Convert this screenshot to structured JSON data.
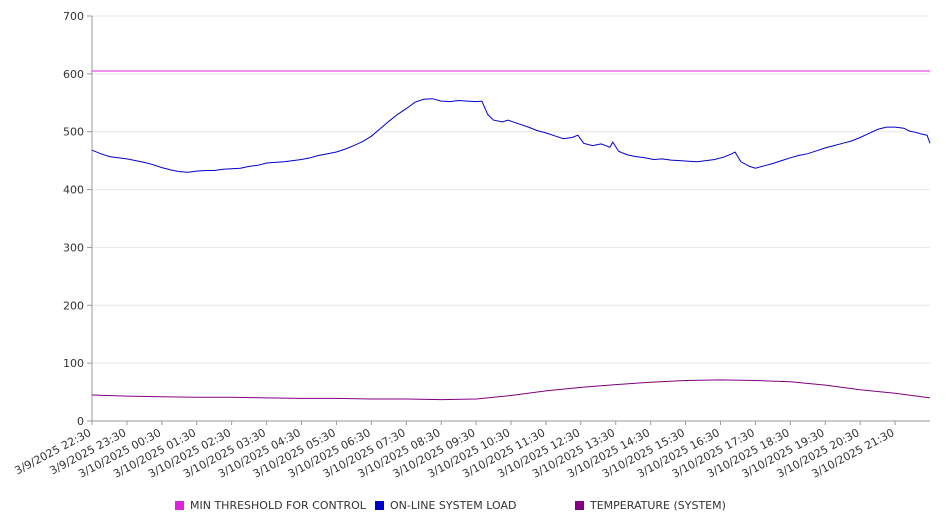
{
  "chart_data": {
    "type": "line",
    "title": "",
    "xlabel": "",
    "ylabel": "",
    "ylim": [
      0,
      700
    ],
    "yticks": [
      0,
      100,
      200,
      300,
      400,
      500,
      600,
      700
    ],
    "grid": "horizontal",
    "legend_position": "bottom",
    "x_start": "3/9/2025 22:30",
    "x_end": "3/10/2025 22:30",
    "xticks": [
      "3/9/2025 22:30",
      "3/9/2025 23:30",
      "3/10/2025 00:30",
      "3/10/2025 01:30",
      "3/10/2025 02:30",
      "3/10/2025 03:30",
      "3/10/2025 04:30",
      "3/10/2025 05:30",
      "3/10/2025 06:30",
      "3/10/2025 07:30",
      "3/10/2025 08:30",
      "3/10/2025 09:30",
      "3/10/2025 10:30",
      "3/10/2025 11:30",
      "3/10/2025 12:30",
      "3/10/2025 13:30",
      "3/10/2025 14:30",
      "3/10/2025 15:30",
      "3/10/2025 16:30",
      "3/10/2025 17:30",
      "3/10/2025 18:30",
      "3/10/2025 19:30",
      "3/10/2025 20:30",
      "3/10/2025 21:30"
    ],
    "series": [
      {
        "name": "MIN THRESHOLD FOR CONTROL",
        "color": "#dd22dd",
        "points": [
          [
            "3/9/2025 22:30",
            605
          ],
          [
            "3/10/2025 22:30",
            605
          ]
        ]
      },
      {
        "name": "ON-LINE SYSTEM LOAD",
        "color": "#0000cc",
        "points": [
          [
            "3/9/2025 22:30",
            468
          ],
          [
            "3/9/2025 22:45",
            462
          ],
          [
            "3/9/2025 23:00",
            457
          ],
          [
            "3/9/2025 23:15",
            455
          ],
          [
            "3/9/2025 23:30",
            453
          ],
          [
            "3/9/2025 23:45",
            450
          ],
          [
            "3/10/2025 00:00",
            447
          ],
          [
            "3/10/2025 00:15",
            443
          ],
          [
            "3/10/2025 00:30",
            438
          ],
          [
            "3/10/2025 00:45",
            434
          ],
          [
            "3/10/2025 01:00",
            431
          ],
          [
            "3/10/2025 01:15",
            430
          ],
          [
            "3/10/2025 01:30",
            432
          ],
          [
            "3/10/2025 01:45",
            433
          ],
          [
            "3/10/2025 02:00",
            433
          ],
          [
            "3/10/2025 02:15",
            435
          ],
          [
            "3/10/2025 02:30",
            436
          ],
          [
            "3/10/2025 02:45",
            437
          ],
          [
            "3/10/2025 03:00",
            440
          ],
          [
            "3/10/2025 03:15",
            442
          ],
          [
            "3/10/2025 03:30",
            446
          ],
          [
            "3/10/2025 03:45",
            447
          ],
          [
            "3/10/2025 04:00",
            448
          ],
          [
            "3/10/2025 04:15",
            450
          ],
          [
            "3/10/2025 04:30",
            452
          ],
          [
            "3/10/2025 04:45",
            455
          ],
          [
            "3/10/2025 05:00",
            459
          ],
          [
            "3/10/2025 05:15",
            462
          ],
          [
            "3/10/2025 05:30",
            465
          ],
          [
            "3/10/2025 05:45",
            470
          ],
          [
            "3/10/2025 06:00",
            476
          ],
          [
            "3/10/2025 06:15",
            483
          ],
          [
            "3/10/2025 06:30",
            492
          ],
          [
            "3/10/2025 06:45",
            505
          ],
          [
            "3/10/2025 07:00",
            518
          ],
          [
            "3/10/2025 07:15",
            530
          ],
          [
            "3/10/2025 07:30",
            540
          ],
          [
            "3/10/2025 07:45",
            551
          ],
          [
            "3/10/2025 08:00",
            556
          ],
          [
            "3/10/2025 08:15",
            557
          ],
          [
            "3/10/2025 08:30",
            553
          ],
          [
            "3/10/2025 08:45",
            552
          ],
          [
            "3/10/2025 09:00",
            554
          ],
          [
            "3/10/2025 09:15",
            553
          ],
          [
            "3/10/2025 09:30",
            552
          ],
          [
            "3/10/2025 09:40",
            553
          ],
          [
            "3/10/2025 09:50",
            530
          ],
          [
            "3/10/2025 10:00",
            520
          ],
          [
            "3/10/2025 10:15",
            517
          ],
          [
            "3/10/2025 10:25",
            520
          ],
          [
            "3/10/2025 10:45",
            513
          ],
          [
            "3/10/2025 11:00",
            508
          ],
          [
            "3/10/2025 11:15",
            502
          ],
          [
            "3/10/2025 11:30",
            498
          ],
          [
            "3/10/2025 11:45",
            493
          ],
          [
            "3/10/2025 12:00",
            488
          ],
          [
            "3/10/2025 12:15",
            490
          ],
          [
            "3/10/2025 12:25",
            494
          ],
          [
            "3/10/2025 12:35",
            480
          ],
          [
            "3/10/2025 12:50",
            476
          ],
          [
            "3/10/2025 13:05",
            479
          ],
          [
            "3/10/2025 13:20",
            473
          ],
          [
            "3/10/2025 13:25",
            482
          ],
          [
            "3/10/2025 13:35",
            466
          ],
          [
            "3/10/2025 13:50",
            460
          ],
          [
            "3/10/2025 14:05",
            457
          ],
          [
            "3/10/2025 14:20",
            455
          ],
          [
            "3/10/2025 14:35",
            452
          ],
          [
            "3/10/2025 14:50",
            453
          ],
          [
            "3/10/2025 15:05",
            451
          ],
          [
            "3/10/2025 15:20",
            450
          ],
          [
            "3/10/2025 15:35",
            449
          ],
          [
            "3/10/2025 15:50",
            448
          ],
          [
            "3/10/2025 16:05",
            450
          ],
          [
            "3/10/2025 16:20",
            452
          ],
          [
            "3/10/2025 16:35",
            456
          ],
          [
            "3/10/2025 16:50",
            462
          ],
          [
            "3/10/2025 16:55",
            465
          ],
          [
            "3/10/2025 17:05",
            448
          ],
          [
            "3/10/2025 17:20",
            440
          ],
          [
            "3/10/2025 17:30",
            437
          ],
          [
            "3/10/2025 17:45",
            441
          ],
          [
            "3/10/2025 18:00",
            445
          ],
          [
            "3/10/2025 18:15",
            450
          ],
          [
            "3/10/2025 18:30",
            455
          ],
          [
            "3/10/2025 18:45",
            459
          ],
          [
            "3/10/2025 19:00",
            462
          ],
          [
            "3/10/2025 19:15",
            467
          ],
          [
            "3/10/2025 19:30",
            472
          ],
          [
            "3/10/2025 19:45",
            476
          ],
          [
            "3/10/2025 20:00",
            480
          ],
          [
            "3/10/2025 20:15",
            484
          ],
          [
            "3/10/2025 20:30",
            490
          ],
          [
            "3/10/2025 20:45",
            497
          ],
          [
            "3/10/2025 21:00",
            504
          ],
          [
            "3/10/2025 21:15",
            508
          ],
          [
            "3/10/2025 21:30",
            508
          ],
          [
            "3/10/2025 21:45",
            506
          ],
          [
            "3/10/2025 21:55",
            501
          ],
          [
            "3/10/2025 22:05",
            499
          ],
          [
            "3/10/2025 22:15",
            496
          ],
          [
            "3/10/2025 22:25",
            494
          ],
          [
            "3/10/2025 22:30",
            480
          ]
        ]
      },
      {
        "name": "TEMPERATURE (SYSTEM)",
        "color": "#800080",
        "points": [
          [
            "3/9/2025 22:30",
            45
          ],
          [
            "3/9/2025 23:30",
            43
          ],
          [
            "3/10/2025 00:30",
            42
          ],
          [
            "3/10/2025 01:30",
            41
          ],
          [
            "3/10/2025 02:30",
            41
          ],
          [
            "3/10/2025 03:30",
            40
          ],
          [
            "3/10/2025 04:30",
            39
          ],
          [
            "3/10/2025 05:30",
            39
          ],
          [
            "3/10/2025 06:30",
            38
          ],
          [
            "3/10/2025 07:30",
            38
          ],
          [
            "3/10/2025 08:30",
            37
          ],
          [
            "3/10/2025 09:30",
            38
          ],
          [
            "3/10/2025 10:30",
            44
          ],
          [
            "3/10/2025 11:30",
            52
          ],
          [
            "3/10/2025 12:30",
            58
          ],
          [
            "3/10/2025 13:30",
            63
          ],
          [
            "3/10/2025 14:30",
            67
          ],
          [
            "3/10/2025 15:30",
            70
          ],
          [
            "3/10/2025 16:30",
            71
          ],
          [
            "3/10/2025 17:30",
            70
          ],
          [
            "3/10/2025 18:30",
            68
          ],
          [
            "3/10/2025 19:30",
            62
          ],
          [
            "3/10/2025 20:30",
            54
          ],
          [
            "3/10/2025 21:30",
            48
          ],
          [
            "3/10/2025 22:30",
            40
          ]
        ]
      }
    ]
  }
}
